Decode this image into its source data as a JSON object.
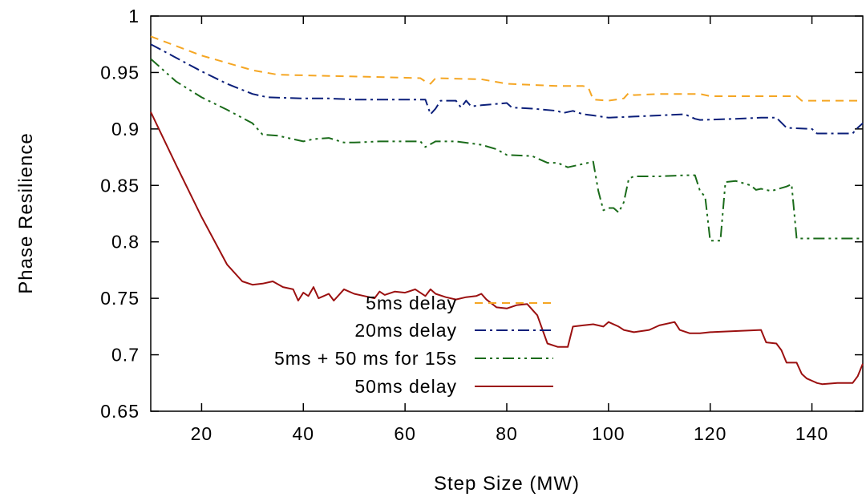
{
  "chart_data": {
    "type": "line",
    "title": "",
    "xlabel": "Step Size (MW)",
    "ylabel": "Phase Resilience",
    "xlim": [
      10,
      150
    ],
    "ylim": [
      0.65,
      1.0
    ],
    "x_ticks": [
      20,
      40,
      60,
      80,
      100,
      120,
      140
    ],
    "x_tick_labels": [
      "20",
      "40",
      "60",
      "80",
      "100",
      "120",
      "140"
    ],
    "y_ticks": [
      0.65,
      0.7,
      0.75,
      0.8,
      0.85,
      0.9,
      0.95,
      1.0
    ],
    "y_tick_labels": [
      "0.65",
      "0.7",
      "0.75",
      "0.8",
      "0.85",
      "0.9",
      "0.95",
      "1"
    ],
    "grid": false,
    "legend_position": "bottom-center",
    "series": [
      {
        "name": "5ms delay",
        "color": "#f5a623",
        "dash": "dashed",
        "points": [
          [
            10,
            0.982
          ],
          [
            20,
            0.965
          ],
          [
            30,
            0.952
          ],
          [
            35,
            0.948
          ],
          [
            45,
            0.947
          ],
          [
            55,
            0.946
          ],
          [
            63,
            0.945
          ],
          [
            64,
            0.942
          ],
          [
            65,
            0.94
          ],
          [
            66,
            0.945
          ],
          [
            75,
            0.944
          ],
          [
            80,
            0.94
          ],
          [
            85,
            0.939
          ],
          [
            90,
            0.938
          ],
          [
            95,
            0.938
          ],
          [
            96,
            0.937
          ],
          [
            97,
            0.926
          ],
          [
            100,
            0.925
          ],
          [
            103,
            0.927
          ],
          [
            104,
            0.932
          ],
          [
            105,
            0.93
          ],
          [
            110,
            0.931
          ],
          [
            118,
            0.931
          ],
          [
            120,
            0.929
          ],
          [
            125,
            0.929
          ],
          [
            130,
            0.929
          ],
          [
            135,
            0.929
          ],
          [
            137,
            0.929
          ],
          [
            138,
            0.925
          ],
          [
            145,
            0.925
          ],
          [
            150,
            0.925
          ]
        ]
      },
      {
        "name": "20ms delay",
        "color": "#0b1f7a",
        "dash": "dash-dot",
        "points": [
          [
            10,
            0.975
          ],
          [
            15,
            0.963
          ],
          [
            20,
            0.951
          ],
          [
            25,
            0.94
          ],
          [
            30,
            0.931
          ],
          [
            33,
            0.928
          ],
          [
            40,
            0.927
          ],
          [
            45,
            0.927
          ],
          [
            50,
            0.926
          ],
          [
            55,
            0.926
          ],
          [
            60,
            0.926
          ],
          [
            64,
            0.926
          ],
          [
            65,
            0.913
          ],
          [
            66,
            0.918
          ],
          [
            67,
            0.925
          ],
          [
            70,
            0.925
          ],
          [
            71,
            0.919
          ],
          [
            72,
            0.925
          ],
          [
            73,
            0.92
          ],
          [
            75,
            0.921
          ],
          [
            80,
            0.923
          ],
          [
            81,
            0.919
          ],
          [
            85,
            0.918
          ],
          [
            90,
            0.916
          ],
          [
            91,
            0.914
          ],
          [
            93,
            0.916
          ],
          [
            95,
            0.913
          ],
          [
            97,
            0.912
          ],
          [
            100,
            0.91
          ],
          [
            105,
            0.911
          ],
          [
            110,
            0.912
          ],
          [
            115,
            0.913
          ],
          [
            117,
            0.909
          ],
          [
            118,
            0.908
          ],
          [
            125,
            0.909
          ],
          [
            130,
            0.91
          ],
          [
            133,
            0.91
          ],
          [
            135,
            0.901
          ],
          [
            140,
            0.9
          ],
          [
            141,
            0.896
          ],
          [
            148,
            0.896
          ],
          [
            149,
            0.901
          ],
          [
            150,
            0.905
          ]
        ]
      },
      {
        "name": "5ms + 50 ms for 15s",
        "color": "#1a6b1a",
        "dash": "dash-dot-dot",
        "points": [
          [
            10,
            0.962
          ],
          [
            15,
            0.942
          ],
          [
            20,
            0.928
          ],
          [
            25,
            0.917
          ],
          [
            30,
            0.905
          ],
          [
            32,
            0.895
          ],
          [
            35,
            0.894
          ],
          [
            40,
            0.889
          ],
          [
            42,
            0.891
          ],
          [
            45,
            0.892
          ],
          [
            48,
            0.888
          ],
          [
            50,
            0.888
          ],
          [
            55,
            0.889
          ],
          [
            60,
            0.889
          ],
          [
            63,
            0.889
          ],
          [
            64,
            0.884
          ],
          [
            66,
            0.889
          ],
          [
            70,
            0.889
          ],
          [
            75,
            0.886
          ],
          [
            78,
            0.882
          ],
          [
            80,
            0.877
          ],
          [
            85,
            0.876
          ],
          [
            88,
            0.87
          ],
          [
            90,
            0.87
          ],
          [
            92,
            0.866
          ],
          [
            95,
            0.869
          ],
          [
            97,
            0.871
          ],
          [
            98,
            0.845
          ],
          [
            99,
            0.828
          ],
          [
            100,
            0.83
          ],
          [
            101,
            0.83
          ],
          [
            102,
            0.826
          ],
          [
            103,
            0.835
          ],
          [
            104,
            0.856
          ],
          [
            105,
            0.858
          ],
          [
            110,
            0.858
          ],
          [
            115,
            0.859
          ],
          [
            117,
            0.859
          ],
          [
            118,
            0.845
          ],
          [
            119,
            0.84
          ],
          [
            120,
            0.801
          ],
          [
            121,
            0.801
          ],
          [
            122,
            0.801
          ],
          [
            123,
            0.853
          ],
          [
            125,
            0.854
          ],
          [
            128,
            0.85
          ],
          [
            129,
            0.846
          ],
          [
            130,
            0.847
          ],
          [
            132,
            0.845
          ],
          [
            135,
            0.849
          ],
          [
            136,
            0.851
          ],
          [
            137,
            0.803
          ],
          [
            140,
            0.803
          ],
          [
            145,
            0.803
          ],
          [
            150,
            0.803
          ]
        ]
      },
      {
        "name": "50ms delay",
        "color": "#9b1010",
        "dash": "solid",
        "points": [
          [
            10,
            0.915
          ],
          [
            15,
            0.868
          ],
          [
            20,
            0.822
          ],
          [
            25,
            0.78
          ],
          [
            28,
            0.765
          ],
          [
            30,
            0.762
          ],
          [
            32,
            0.763
          ],
          [
            34,
            0.765
          ],
          [
            36,
            0.76
          ],
          [
            38,
            0.758
          ],
          [
            39,
            0.748
          ],
          [
            40,
            0.755
          ],
          [
            41,
            0.752
          ],
          [
            42,
            0.76
          ],
          [
            43,
            0.75
          ],
          [
            44,
            0.752
          ],
          [
            45,
            0.754
          ],
          [
            46,
            0.748
          ],
          [
            48,
            0.758
          ],
          [
            50,
            0.754
          ],
          [
            52,
            0.752
          ],
          [
            54,
            0.75
          ],
          [
            55,
            0.756
          ],
          [
            56,
            0.753
          ],
          [
            58,
            0.756
          ],
          [
            60,
            0.755
          ],
          [
            62,
            0.758
          ],
          [
            64,
            0.752
          ],
          [
            65,
            0.758
          ],
          [
            66,
            0.754
          ],
          [
            68,
            0.751
          ],
          [
            70,
            0.749
          ],
          [
            72,
            0.751
          ],
          [
            74,
            0.752
          ],
          [
            75,
            0.754
          ],
          [
            76,
            0.749
          ],
          [
            78,
            0.742
          ],
          [
            80,
            0.741
          ],
          [
            82,
            0.744
          ],
          [
            84,
            0.745
          ],
          [
            86,
            0.735
          ],
          [
            88,
            0.71
          ],
          [
            90,
            0.707
          ],
          [
            92,
            0.707
          ],
          [
            93,
            0.725
          ],
          [
            95,
            0.726
          ],
          [
            97,
            0.727
          ],
          [
            99,
            0.725
          ],
          [
            100,
            0.729
          ],
          [
            102,
            0.725
          ],
          [
            103,
            0.722
          ],
          [
            105,
            0.72
          ],
          [
            108,
            0.722
          ],
          [
            110,
            0.726
          ],
          [
            113,
            0.729
          ],
          [
            114,
            0.722
          ],
          [
            116,
            0.719
          ],
          [
            118,
            0.719
          ],
          [
            120,
            0.72
          ],
          [
            125,
            0.721
          ],
          [
            130,
            0.722
          ],
          [
            131,
            0.711
          ],
          [
            133,
            0.71
          ],
          [
            134,
            0.704
          ],
          [
            135,
            0.693
          ],
          [
            137,
            0.693
          ],
          [
            138,
            0.683
          ],
          [
            139,
            0.679
          ],
          [
            141,
            0.675
          ],
          [
            142,
            0.674
          ],
          [
            145,
            0.675
          ],
          [
            148,
            0.675
          ],
          [
            149,
            0.681
          ],
          [
            150,
            0.692
          ]
        ]
      }
    ]
  }
}
